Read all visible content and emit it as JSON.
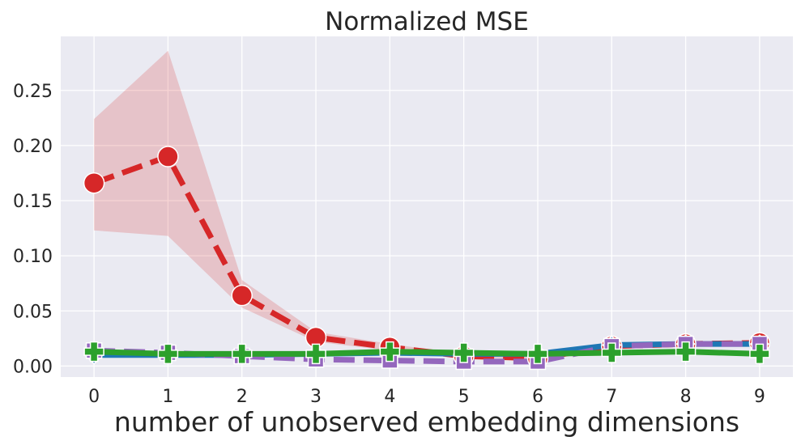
{
  "chart_data": {
    "type": "line",
    "title": "Normalized MSE",
    "xlabel": "number of unobserved embedding dimensions",
    "ylabel": "",
    "x": [
      0,
      1,
      2,
      3,
      4,
      5,
      6,
      7,
      8,
      9
    ],
    "xlim": [
      -0.45,
      9.45
    ],
    "ylim": [
      -0.01,
      0.299
    ],
    "xticks": [
      0,
      1,
      2,
      3,
      4,
      5,
      6,
      7,
      8,
      9
    ],
    "yticks": [
      0.0,
      0.05,
      0.1,
      0.15,
      0.2,
      0.25
    ],
    "ytick_labels": [
      "0.00",
      "0.05",
      "0.10",
      "0.15",
      "0.20",
      "0.25"
    ],
    "grid": true,
    "style": "seaborn-darkgrid",
    "series": [
      {
        "color": "#d62728",
        "line_style": "dashed",
        "marker": "circle",
        "values": [
          0.166,
          0.19,
          0.064,
          0.026,
          0.017,
          0.009,
          0.007,
          0.018,
          0.02,
          0.021
        ],
        "band_lower": [
          0.123,
          0.118,
          0.053,
          0.022,
          0.014,
          0.008,
          0.006,
          0.016,
          0.018,
          0.019
        ],
        "band_upper": [
          0.224,
          0.286,
          0.078,
          0.031,
          0.02,
          0.011,
          0.008,
          0.02,
          0.022,
          0.023
        ]
      },
      {
        "color": "#1f77b4",
        "line_style": "solid",
        "marker": "diamond",
        "values": [
          0.01,
          0.01,
          0.01,
          0.011,
          0.012,
          0.011,
          0.011,
          0.019,
          0.02,
          0.02
        ]
      },
      {
        "color": "#9467bd",
        "line_style": "dashed",
        "marker": "square",
        "values": [
          0.014,
          0.012,
          0.009,
          0.006,
          0.005,
          0.004,
          0.004,
          0.018,
          0.02,
          0.02
        ]
      },
      {
        "color": "#2ca02c",
        "line_style": "solid",
        "marker": "plus",
        "values": [
          0.013,
          0.011,
          0.011,
          0.011,
          0.013,
          0.012,
          0.011,
          0.012,
          0.013,
          0.011
        ]
      }
    ]
  }
}
